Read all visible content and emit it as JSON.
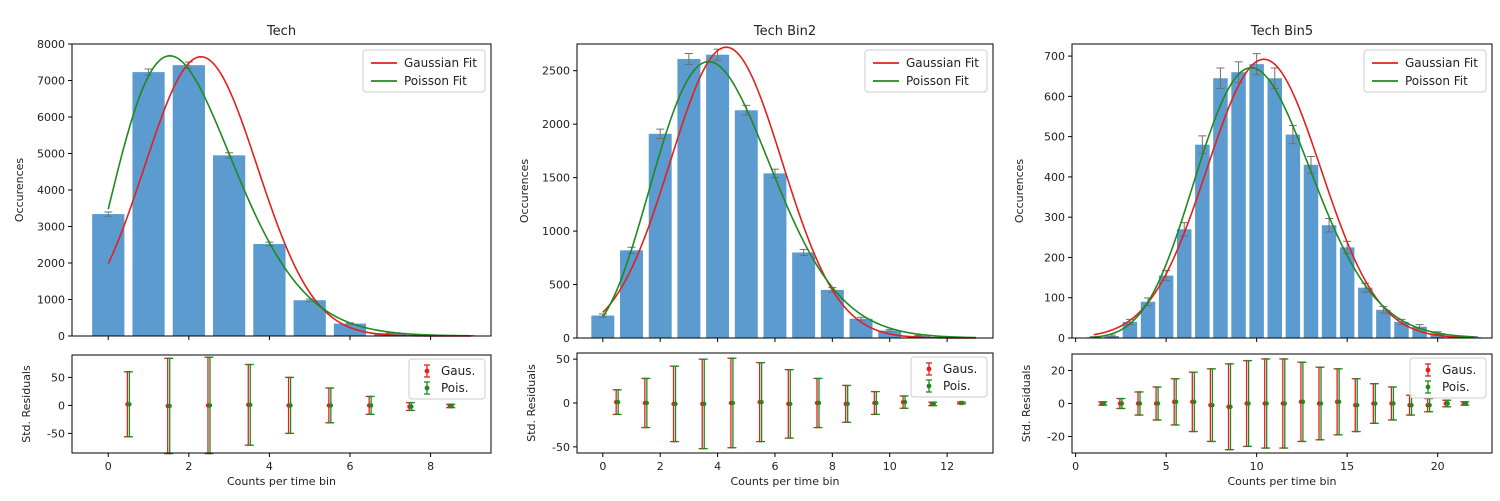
{
  "colors": {
    "bar": "#5b9bd0",
    "gaussian": "#e0221e",
    "poisson": "#1f8a1f",
    "errorbar": "#707070",
    "frame": "#000000"
  },
  "chart_data": [
    {
      "id": "tech",
      "type": "bar",
      "title": "Tech",
      "ylabel": "Occurences",
      "xlabel": "",
      "xlim": [
        -0.9,
        9.5
      ],
      "ylim": [
        0,
        8000
      ],
      "yticks": [
        0,
        1000,
        2000,
        3000,
        4000,
        5000,
        6000,
        7000,
        8000
      ],
      "legend_position": "top-right",
      "categories": [
        0,
        1,
        2,
        3,
        4,
        5,
        6,
        7,
        8,
        9
      ],
      "values": [
        3340,
        7230,
        7420,
        4950,
        2520,
        980,
        340,
        80,
        20,
        5
      ],
      "gaussian_fit": {
        "name": "Gaussian Fit",
        "mu": 2.3,
        "sigma": 1.4,
        "amp": 7650,
        "x_range": [
          0,
          9
        ]
      },
      "poisson_fit": {
        "name": "Poisson Fit",
        "lambda": 2.05,
        "scale": 27000,
        "x_range": [
          0,
          9
        ]
      },
      "residuals": {
        "ylabel": "Std. Residuals",
        "xlabel": "Counts per time bin",
        "ylim": [
          -85,
          90
        ],
        "yticks": [
          -50,
          0,
          50
        ],
        "xticks": [
          0,
          2,
          4,
          6,
          8
        ],
        "legend_position": "top-right",
        "legend": [
          "Gaus.",
          "Pois."
        ],
        "x": [
          0.5,
          1.5,
          2.5,
          3.5,
          4.5,
          5.5,
          6.5,
          7.5,
          8.5
        ],
        "gaus_values": [
          2,
          -1,
          0,
          1,
          0,
          0,
          0,
          -2,
          -1
        ],
        "gaus_err": [
          58,
          85,
          86,
          72,
          50,
          31,
          16,
          7,
          3
        ],
        "pois_values": [
          2,
          -1,
          0,
          1,
          0,
          0,
          0,
          -2,
          -1
        ],
        "pois_err": [
          58,
          85,
          86,
          72,
          50,
          31,
          16,
          7,
          3
        ]
      }
    },
    {
      "id": "bin2",
      "type": "bar",
      "title": "Tech Bin2",
      "ylabel": "Occurences",
      "xlabel": "",
      "xlim": [
        -0.9,
        13.6
      ],
      "ylim": [
        0,
        2750
      ],
      "yticks": [
        0,
        500,
        1000,
        1500,
        2000,
        2500
      ],
      "legend_position": "top-right",
      "categories": [
        0,
        1,
        2,
        3,
        4,
        5,
        6,
        7,
        8,
        9,
        10,
        11,
        12
      ],
      "values": [
        210,
        820,
        1910,
        2610,
        2650,
        2130,
        1540,
        800,
        450,
        180,
        70,
        20,
        5
      ],
      "gaussian_fit": {
        "name": "Gaussian Fit",
        "mu": 4.3,
        "sigma": 1.95,
        "amp": 2720,
        "x_range": [
          0,
          13
        ]
      },
      "poisson_fit": {
        "name": "Poisson Fit",
        "lambda": 4.2,
        "scale": 13150,
        "x_range": [
          0,
          13
        ]
      },
      "residuals": {
        "ylabel": "Std. Residuals",
        "xlabel": "Counts per time bin",
        "ylim": [
          -57,
          57
        ],
        "yticks": [
          -50,
          0,
          50
        ],
        "xticks": [
          0,
          2,
          4,
          6,
          8,
          10,
          12
        ],
        "legend_position": "top-right",
        "legend": [
          "Gaus.",
          "Pois."
        ],
        "x": [
          0.5,
          1.5,
          2.5,
          3.5,
          4.5,
          5.5,
          6.5,
          7.5,
          8.5,
          9.5,
          10.5,
          11.5,
          12.5
        ],
        "gaus_values": [
          1,
          0,
          -1,
          -1,
          0,
          1,
          -1,
          0,
          -1,
          0,
          1,
          -1,
          0
        ],
        "gaus_err": [
          14,
          28,
          43,
          51,
          51,
          45,
          39,
          28,
          21,
          13,
          7,
          2,
          1
        ],
        "pois_values": [
          1,
          0,
          -1,
          -1,
          0,
          1,
          -1,
          0,
          -1,
          0,
          1,
          -1,
          0
        ],
        "pois_err": [
          14,
          28,
          43,
          51,
          51,
          45,
          39,
          28,
          21,
          13,
          7,
          2,
          1
        ]
      }
    },
    {
      "id": "bin5",
      "type": "bar",
      "title": "Tech Bin5",
      "ylabel": "Occurences",
      "xlabel": "",
      "xlim": [
        -0.2,
        23
      ],
      "ylim": [
        0,
        730
      ],
      "yticks": [
        0,
        100,
        200,
        300,
        400,
        500,
        600,
        700
      ],
      "legend_position": "top-right",
      "categories": [
        1,
        2,
        3,
        4,
        5,
        6,
        7,
        8,
        9,
        10,
        11,
        12,
        13,
        14,
        15,
        16,
        17,
        18,
        19,
        20,
        21,
        22
      ],
      "values": [
        2,
        5,
        40,
        90,
        155,
        270,
        480,
        645,
        660,
        680,
        645,
        505,
        430,
        280,
        225,
        125,
        70,
        40,
        28,
        12,
        4,
        2
      ],
      "gaussian_fit": {
        "name": "Gaussian Fit",
        "mu": 10.4,
        "sigma": 3.15,
        "amp": 692,
        "x_range": [
          1,
          22
        ]
      },
      "poisson_fit": {
        "name": "Poisson Fit",
        "lambda": 10.2,
        "scale": 5350,
        "x_range": [
          1,
          22
        ]
      },
      "residuals": {
        "ylabel": "Std. Residuals",
        "xlabel": "Counts per time bin",
        "ylim": [
          -30,
          30
        ],
        "yticks": [
          -20,
          0,
          20
        ],
        "xticks": [
          0,
          5,
          10,
          15,
          20
        ],
        "legend_position": "top-right",
        "legend": [
          "Gaus.",
          "Pois."
        ],
        "x": [
          1.5,
          2.5,
          3.5,
          4.5,
          5.5,
          6.5,
          7.5,
          8.5,
          9.5,
          10.5,
          11.5,
          12.5,
          13.5,
          14.5,
          15.5,
          16.5,
          17.5,
          18.5,
          19.5,
          20.5,
          21.5
        ],
        "gaus_values": [
          0,
          0,
          0,
          0,
          1,
          1,
          -1,
          -2,
          0,
          0,
          0,
          1,
          0,
          1,
          -1,
          0,
          0,
          -1,
          -1,
          0,
          0
        ],
        "gaus_err": [
          1,
          3,
          7,
          10,
          14,
          18,
          22,
          26,
          26,
          27,
          27,
          24,
          22,
          20,
          16,
          12,
          10,
          6,
          4,
          2,
          1
        ],
        "pois_values": [
          0,
          0,
          0,
          0,
          1,
          1,
          -1,
          -2,
          0,
          0,
          0,
          1,
          0,
          1,
          -1,
          0,
          0,
          -1,
          -1,
          0,
          0
        ],
        "pois_err": [
          1,
          3,
          7,
          10,
          14,
          18,
          22,
          26,
          26,
          27,
          27,
          24,
          22,
          20,
          16,
          12,
          10,
          6,
          4,
          2,
          1
        ]
      }
    }
  ]
}
